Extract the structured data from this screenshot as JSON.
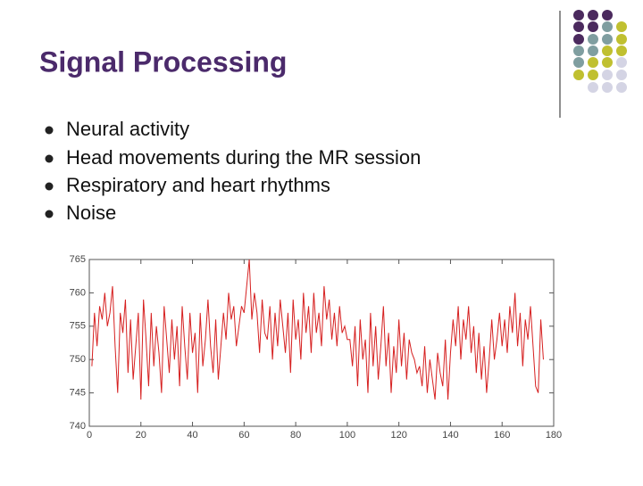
{
  "title": "Signal Processing",
  "bullets": [
    "Neural activity",
    "Head movements during the MR session",
    "Respiratory and heart rhythms",
    "Noise"
  ],
  "chart_data": {
    "type": "line",
    "x": [
      1,
      2,
      3,
      4,
      5,
      6,
      7,
      8,
      9,
      10,
      11,
      12,
      13,
      14,
      15,
      16,
      17,
      18,
      19,
      20,
      21,
      22,
      23,
      24,
      25,
      26,
      27,
      28,
      29,
      30,
      31,
      32,
      33,
      34,
      35,
      36,
      37,
      38,
      39,
      40,
      41,
      42,
      43,
      44,
      45,
      46,
      47,
      48,
      49,
      50,
      51,
      52,
      53,
      54,
      55,
      56,
      57,
      58,
      59,
      60,
      61,
      62,
      63,
      64,
      65,
      66,
      67,
      68,
      69,
      70,
      71,
      72,
      73,
      74,
      75,
      76,
      77,
      78,
      79,
      80,
      81,
      82,
      83,
      84,
      85,
      86,
      87,
      88,
      89,
      90,
      91,
      92,
      93,
      94,
      95,
      96,
      97,
      98,
      99,
      100,
      101,
      102,
      103,
      104,
      105,
      106,
      107,
      108,
      109,
      110,
      111,
      112,
      113,
      114,
      115,
      116,
      117,
      118,
      119,
      120,
      121,
      122,
      123,
      124,
      125,
      126,
      127,
      128,
      129,
      130,
      131,
      132,
      133,
      134,
      135,
      136,
      137,
      138,
      139,
      140,
      141,
      142,
      143,
      144,
      145,
      146,
      147,
      148,
      149,
      150,
      151,
      152,
      153,
      154,
      155,
      156,
      157,
      158,
      159,
      160,
      161,
      162,
      163,
      164,
      165,
      166,
      167,
      168,
      169,
      170,
      171,
      172,
      173,
      174,
      175,
      176
    ],
    "series": [
      {
        "color": "#d62020",
        "values": [
          749,
          757,
          752,
          758,
          756,
          760,
          755,
          757,
          761,
          752,
          745,
          757,
          754,
          759,
          748,
          756,
          747,
          752,
          757,
          744,
          759,
          753,
          746,
          757,
          749,
          755,
          751,
          745,
          758,
          753,
          748,
          756,
          750,
          755,
          746,
          758,
          752,
          747,
          757,
          751,
          754,
          745,
          757,
          749,
          753,
          759,
          752,
          748,
          756,
          747,
          752,
          757,
          753,
          760,
          756,
          758,
          752,
          755,
          758,
          757,
          761,
          765,
          756,
          760,
          757,
          751,
          759,
          754,
          753,
          758,
          750,
          757,
          752,
          759,
          755,
          751,
          757,
          748,
          759,
          753,
          756,
          750,
          760,
          754,
          758,
          751,
          760,
          754,
          757,
          752,
          761,
          756,
          759,
          753,
          757,
          752,
          758,
          754,
          755,
          753,
          753,
          749,
          755,
          746,
          756,
          750,
          753,
          745,
          757,
          749,
          755,
          747,
          752,
          758,
          749,
          754,
          745,
          752,
          748,
          756,
          749,
          754,
          747,
          753,
          751,
          750,
          748,
          749,
          746,
          752,
          745,
          750,
          747,
          744,
          751,
          748,
          746,
          753,
          744,
          751,
          756,
          752,
          758,
          750,
          756,
          753,
          758,
          751,
          755,
          748,
          754,
          747,
          752,
          745,
          750,
          756,
          750,
          753,
          757,
          752,
          756,
          751,
          758,
          754,
          760,
          752,
          757,
          749,
          756,
          753,
          758,
          752,
          746,
          745,
          756,
          750
        ]
      }
    ],
    "xlim": [
      0,
      180
    ],
    "xticks": [
      0,
      20,
      40,
      60,
      80,
      100,
      120,
      140,
      160,
      180
    ],
    "ylim": [
      740,
      765
    ],
    "yticks": [
      740,
      745,
      750,
      755,
      760,
      765
    ]
  }
}
